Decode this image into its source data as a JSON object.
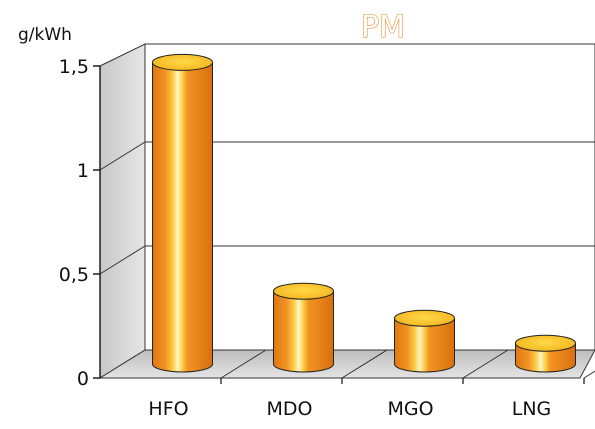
{
  "chart_data": {
    "type": "bar",
    "title": "PM",
    "ylabel": "g/kWh",
    "xlabel": "",
    "categories": [
      "HFO",
      "MDO",
      "MGO",
      "LNG"
    ],
    "values": [
      1.45,
      0.35,
      0.22,
      0.1
    ],
    "ylim": [
      0,
      1.5
    ],
    "yticks": [
      0,
      0.5,
      1,
      1.5
    ],
    "ytick_labels": [
      "0",
      "0,5",
      "1",
      "1,5"
    ],
    "grid": true,
    "bar_style": "3d-cylinder",
    "colors": {
      "bar_dark": "#e8831e",
      "bar_mid": "#f59a28",
      "bar_light": "#fbd04a",
      "bar_highlight": "#fff3b0",
      "bar_top": "#f7c326",
      "title": "#e8831e",
      "wall": "#d9d9d9",
      "floor": "#cfcfcf"
    }
  }
}
